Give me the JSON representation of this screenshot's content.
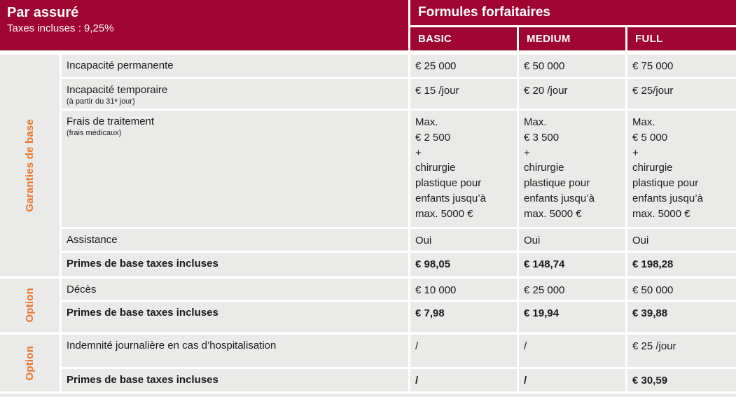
{
  "header": {
    "left_title": "Par assuré",
    "left_subtitle": "Taxes incluses : 9,25%",
    "right_title": "Formules forfaitaires",
    "plans": [
      "BASIC",
      "MEDIUM",
      "FULL"
    ]
  },
  "colors": {
    "brand_red": "#A00431",
    "accent_orange": "#EE7221",
    "row_gray": "#EAEBE8",
    "text": "#1A1A1A"
  },
  "sections": [
    {
      "label": "Garanties de base",
      "rows": [
        {
          "label": "Incapacité permanente",
          "sublabel": "",
          "values": [
            "€ 25 000",
            "€ 50 000",
            "€ 75 000"
          ]
        },
        {
          "label": "Incapacité temporaire",
          "sublabel": "(à partir du 31ᵉ jour)",
          "values": [
            "€ 15 /jour",
            "€ 20 /jour",
            "€ 25/jour"
          ]
        },
        {
          "label": "Frais de traitement",
          "sublabel": "(frais médicaux)",
          "values": [
            "Max.\n€ 2 500\n+\nchirurgie\nplastique pour\nenfants jusqu’à\nmax. 5000 €",
            "Max.\n€ 3 500\n+\nchirurgie\nplastique pour\nenfants jusqu’à\nmax. 5000 €",
            "Max.\n€ 5 000\n+\nchirurgie\nplastique pour\nenfants jusqu’à\nmax. 5000 €"
          ]
        },
        {
          "label": "Assistance",
          "sublabel": "",
          "values": [
            "Oui",
            "Oui",
            "Oui"
          ]
        },
        {
          "label": "Primes de base taxes incluses",
          "sublabel": "",
          "values": [
            "€ 98,05",
            "€ 148,74",
            "€ 198,28"
          ]
        }
      ]
    },
    {
      "label": "Option",
      "rows": [
        {
          "label": "Décès",
          "sublabel": "",
          "values": [
            "€ 10 000",
            "€ 25 000",
            "€ 50 000"
          ]
        },
        {
          "label": "Primes de base taxes incluses",
          "sublabel": "",
          "values": [
            "€ 7,98",
            "€ 19,94",
            "€ 39,88"
          ]
        }
      ]
    },
    {
      "label": "Option",
      "rows": [
        {
          "label": "Indemnité journalière en cas d’hospitalisation",
          "sublabel": "",
          "values": [
            "/",
            "/",
            "€ 25 /jour"
          ]
        },
        {
          "label": "Primes de base taxes incluses",
          "sublabel": "",
          "values": [
            "/",
            "/",
            "€ 30,59"
          ]
        }
      ]
    }
  ]
}
